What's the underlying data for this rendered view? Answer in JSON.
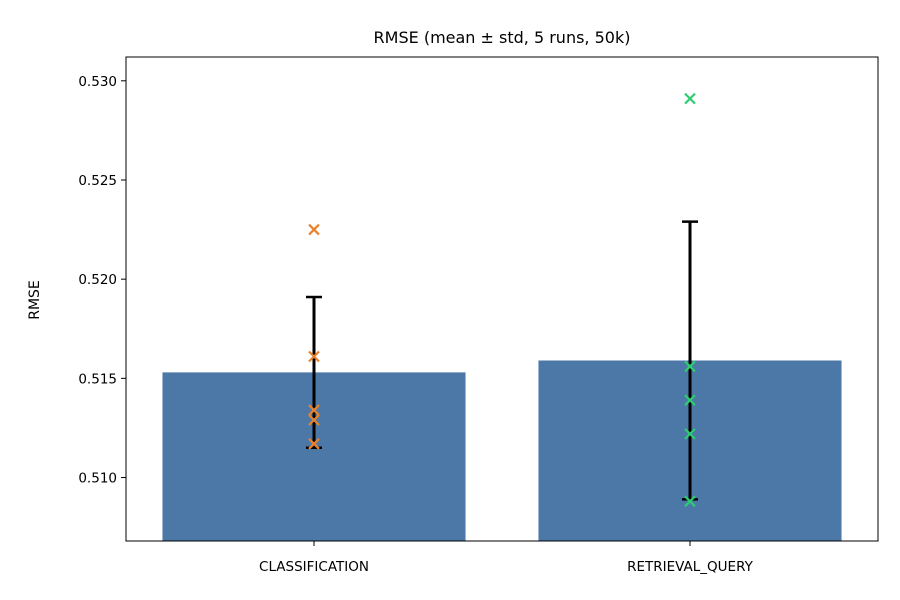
{
  "chart_data": {
    "type": "bar",
    "title": "RMSE (mean ± std, 5 runs, 50k)",
    "xlabel": "",
    "ylabel": "RMSE",
    "ylim": [
      0.5068,
      0.5312
    ],
    "yticks": [
      0.51,
      0.515,
      0.52,
      0.525,
      0.53
    ],
    "ytick_labels": [
      "0.510",
      "0.515",
      "0.520",
      "0.525",
      "0.530"
    ],
    "categories": [
      "CLASSIFICATION",
      "RETRIEVAL_QUERY"
    ],
    "values": [
      0.5153,
      0.5159
    ],
    "errors": [
      0.0038,
      0.007
    ],
    "bar_color": "#4c78a8",
    "errorbar_color": "#000000",
    "runs": [
      {
        "category": "CLASSIFICATION",
        "color": "#e8822a",
        "values": [
          0.5225,
          0.5161,
          0.5134,
          0.5129,
          0.5117
        ]
      },
      {
        "category": "RETRIEVAL_QUERY",
        "color": "#2ecc71",
        "values": [
          0.5291,
          0.5156,
          0.5139,
          0.5122,
          0.5088
        ]
      }
    ],
    "grid": false,
    "legend": "none"
  }
}
